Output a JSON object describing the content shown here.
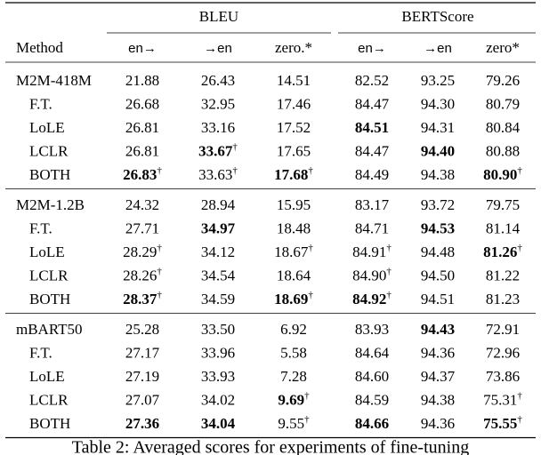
{
  "table": {
    "group_headers": [
      "BLEU",
      "BERTScore"
    ],
    "columns": [
      "Method",
      "en→",
      "→en",
      "zero.*",
      "en→",
      "→en",
      "zero*"
    ],
    "groups": [
      {
        "base": {
          "method": "M2M-418M",
          "cells": [
            "21.88",
            "26.43",
            "14.51",
            "82.52",
            "93.25",
            "79.26"
          ]
        },
        "variants": [
          {
            "method": "F.T.",
            "cells": [
              "26.68",
              "32.95",
              "17.46",
              "84.47",
              "94.30",
              "80.79"
            ]
          },
          {
            "method": "LoLE",
            "cells": [
              "26.81",
              "33.16",
              "17.52",
              {
                "text": "84.51",
                "bold": true
              },
              "94.31",
              "80.84"
            ]
          },
          {
            "method": "LCLR",
            "cells": [
              "26.81",
              {
                "text": "33.67",
                "bold": true,
                "sup": "†"
              },
              "17.65",
              "84.47",
              {
                "text": "94.40",
                "bold": true
              },
              "80.88"
            ]
          },
          {
            "method": "BOTH",
            "cells": [
              {
                "text": "26.83",
                "bold": true,
                "sup": "†"
              },
              {
                "text": "33.63",
                "sup": "†"
              },
              {
                "text": "17.68",
                "bold": true,
                "sup": "†"
              },
              "84.49",
              "94.38",
              {
                "text": "80.90",
                "bold": true,
                "sup": "†"
              }
            ]
          }
        ]
      },
      {
        "base": {
          "method": "M2M-1.2B",
          "cells": [
            "24.32",
            "28.94",
            "15.95",
            "83.17",
            "93.72",
            "79.75"
          ]
        },
        "variants": [
          {
            "method": "F.T.",
            "cells": [
              "27.71",
              {
                "text": "34.97",
                "bold": true
              },
              "18.48",
              "84.71",
              {
                "text": "94.53",
                "bold": true
              },
              "81.14"
            ]
          },
          {
            "method": "LoLE",
            "cells": [
              {
                "text": "28.29",
                "sup": "†"
              },
              "34.12",
              {
                "text": "18.67",
                "sup": "†"
              },
              {
                "text": "84.91",
                "sup": "†"
              },
              "94.48",
              {
                "text": "81.26",
                "bold": true,
                "sup": "†"
              }
            ]
          },
          {
            "method": "LCLR",
            "cells": [
              {
                "text": "28.26",
                "sup": "†"
              },
              "34.54",
              "18.64",
              {
                "text": "84.90",
                "sup": "†"
              },
              "94.50",
              "81.22"
            ]
          },
          {
            "method": "BOTH",
            "cells": [
              {
                "text": "28.37",
                "bold": true,
                "sup": "†"
              },
              "34.59",
              {
                "text": "18.69",
                "bold": true,
                "sup": "†"
              },
              {
                "text": "84.92",
                "bold": true,
                "sup": "†"
              },
              "94.51",
              "81.23"
            ]
          }
        ]
      },
      {
        "base": {
          "method": "mBART50",
          "cells": [
            "25.28",
            "33.50",
            "6.92",
            "83.93",
            {
              "text": "94.43",
              "bold": true
            },
            "72.91"
          ]
        },
        "variants": [
          {
            "method": "F.T.",
            "cells": [
              "27.17",
              "33.96",
              "5.58",
              "84.64",
              "94.36",
              "72.96"
            ]
          },
          {
            "method": "LoLE",
            "cells": [
              "27.19",
              "33.93",
              "7.28",
              "84.60",
              "94.37",
              "73.86"
            ]
          },
          {
            "method": "LCLR",
            "cells": [
              "27.07",
              "34.02",
              {
                "text": "9.69",
                "bold": true,
                "sup": "†"
              },
              "84.59",
              "94.38",
              {
                "text": "75.31",
                "sup": "†"
              }
            ]
          },
          {
            "method": "BOTH",
            "cells": [
              {
                "text": "27.36",
                "bold": true
              },
              {
                "text": "34.04",
                "bold": true
              },
              {
                "text": "9.55",
                "sup": "†"
              },
              {
                "text": "84.66",
                "bold": true
              },
              "94.36",
              {
                "text": "75.55",
                "bold": true,
                "sup": "†"
              }
            ]
          }
        ]
      }
    ],
    "caption": "Table 2: Averaged scores for experiments of fine-tuning"
  }
}
